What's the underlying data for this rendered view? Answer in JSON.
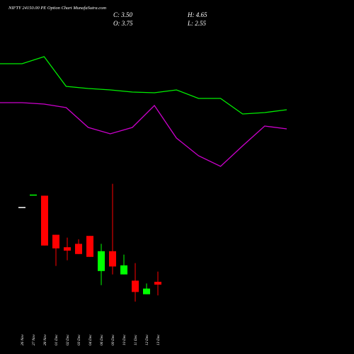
{
  "chart_data": [
    {
      "type": "candlestick",
      "title": "NIFTY 24150.00  PE Option  Chart MunafaSutra.com",
      "ohlc_labels": {
        "close": "C: 3.50",
        "high": "H: 4.65",
        "open": "O: 3.75",
        "low": "L: 2.55"
      },
      "categories": [
        "26 Nov",
        "27 Nov",
        "28 Nov",
        "01 Dec",
        "02 Dec",
        "03 Dec",
        "04 Dec",
        "06 Dec",
        "09 Dec",
        "10 Dec",
        "11 Dec",
        "12 Dec",
        "13 Dec"
      ],
      "open": [
        10.35,
        11.45,
        11.35,
        7.9,
        6.8,
        7.1,
        7.8,
        4.7,
        6.45,
        4.4,
        3.85,
        2.65,
        3.75
      ],
      "high": [
        10.35,
        11.45,
        11.35,
        7.9,
        7.65,
        7.5,
        7.8,
        7.1,
        12.4,
        6.15,
        5.4,
        3.6,
        4.65
      ],
      "low": [
        10.35,
        11.45,
        6.95,
        5.15,
        5.65,
        6.2,
        5.95,
        3.45,
        4.4,
        4.4,
        2.0,
        2.65,
        2.55
      ],
      "close": [
        10.35,
        11.45,
        6.95,
        6.7,
        6.5,
        6.2,
        5.95,
        6.45,
        5.1,
        5.2,
        2.85,
        3.15,
        3.5
      ],
      "candle_colors": [
        "#ffffff",
        "#00ff00",
        "#ff0000",
        "#ff0000",
        "#ff0000",
        "#ff0000",
        "#ff0000",
        "#00ff00",
        "#ff0000",
        "#00ff00",
        "#ff0000",
        "#00ff00",
        "#ff0000"
      ],
      "ylim": [
        0,
        13
      ]
    },
    {
      "type": "line",
      "series": [
        {
          "color": "#00ee00",
          "values": [
            80,
            80,
            85,
            64,
            62.5,
            61.5,
            60,
            59.5,
            61.5,
            55.5,
            55.5,
            44.5,
            45.5,
            47.5
          ]
        },
        {
          "color": "#cc00cc",
          "values": [
            52.5,
            52.5,
            51.5,
            49,
            35,
            30.5,
            35,
            50.5,
            27.5,
            15,
            7.5,
            22,
            36,
            34
          ]
        }
      ],
      "ylim": [
        0,
        100
      ]
    }
  ]
}
